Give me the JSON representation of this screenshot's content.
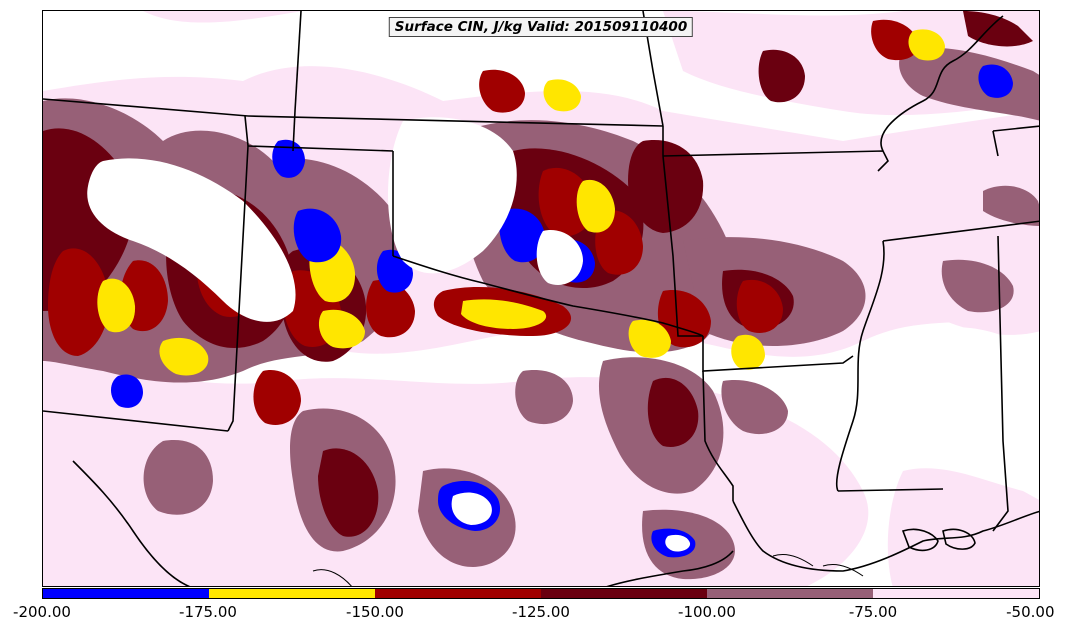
{
  "title": "Surface CIN, J/kg Valid: 201509110400",
  "colorbar": {
    "colors": [
      "#0000ff",
      "#ffe600",
      "#a00000",
      "#6a0010",
      "#976077",
      "#fce4f6"
    ],
    "tick_labels": [
      "-200.00",
      "-175.00",
      "-150.00",
      "-125.00",
      "-100.00",
      "-75.00",
      "-50.00"
    ]
  },
  "colors": {
    "background": "#ffffff",
    "boundaries": "#000000",
    "blue": "#0000ff",
    "yellow": "#ffe600",
    "red": "#a00000",
    "dark_red": "#6a0010",
    "mauve": "#976077",
    "pink": "#fce4f6"
  }
}
